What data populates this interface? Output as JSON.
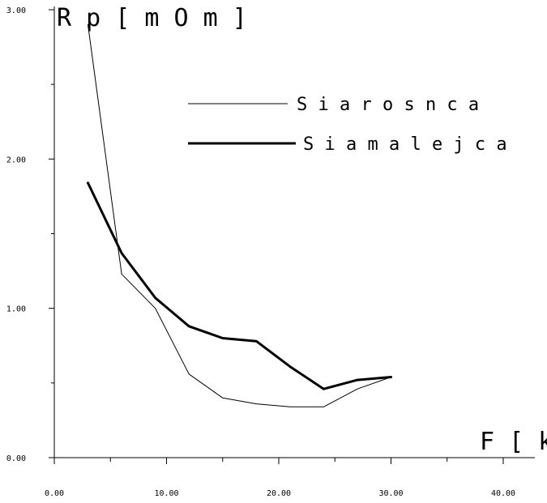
{
  "chart_data": {
    "type": "line",
    "ylabel": "R p [ m O m ]",
    "xlabel": "F [ k g ]",
    "xlim": [
      0,
      40
    ],
    "ylim": [
      0,
      3
    ],
    "x_ticks": [
      0,
      10,
      20,
      30,
      40
    ],
    "x_tick_labels": [
      "0.00",
      "10.00",
      "20.00",
      "30.00",
      "40.00"
    ],
    "x_minor_ticks": [
      5,
      15,
      25,
      35
    ],
    "y_ticks": [
      0,
      1,
      2,
      3
    ],
    "y_tick_labels": [
      "0.00",
      "1.00",
      "2.00",
      "3.00"
    ],
    "y_minor_ticks": [
      0.5,
      1.5,
      2.5
    ],
    "grid": false,
    "legend_position": "top-right",
    "series": [
      {
        "name": "S i a r o s n   c a",
        "style": "thin",
        "color": "#000000",
        "x": [
          3,
          6,
          9,
          12,
          15,
          18,
          21,
          24,
          27,
          30
        ],
        "y": [
          2.9,
          1.23,
          1.0,
          0.56,
          0.4,
          0.36,
          0.34,
          0.34,
          0.46,
          0.54
        ]
      },
      {
        "name": "S i a m a l e j   c a",
        "style": "thick",
        "color": "#000000",
        "x": [
          3,
          6,
          9,
          12,
          15,
          18,
          21,
          24,
          27,
          30
        ],
        "y": [
          1.84,
          1.37,
          1.07,
          0.88,
          0.8,
          0.78,
          0.61,
          0.46,
          0.52,
          0.54
        ]
      }
    ]
  }
}
